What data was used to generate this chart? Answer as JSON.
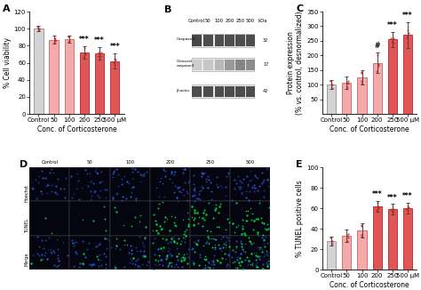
{
  "panel_A": {
    "label": "A",
    "categories": [
      "Control",
      "50",
      "100",
      "200",
      "250",
      "500 μM"
    ],
    "values": [
      100,
      87,
      88,
      72,
      71,
      62
    ],
    "errors": [
      3,
      5,
      4,
      7,
      7,
      9
    ],
    "ylabel": "% Cell viability",
    "xlabel": "Conc. of Corticosterone",
    "ylim": [
      0,
      120
    ],
    "yticks": [
      0,
      20,
      40,
      60,
      80,
      100,
      120
    ],
    "sig": [
      "",
      "",
      "",
      "***",
      "***",
      "***"
    ],
    "bar_colors": [
      "#d3d3d3",
      "#f2aaaa",
      "#f2aaaa",
      "#e05555",
      "#e05555",
      "#e05555"
    ],
    "edge_colors": [
      "#909090",
      "#d06060",
      "#d06060",
      "#bb2222",
      "#bb2222",
      "#bb2222"
    ]
  },
  "panel_C": {
    "label": "C",
    "categories": [
      "Control",
      "50",
      "100",
      "200",
      "250",
      "500 μM"
    ],
    "values": [
      100,
      107,
      125,
      175,
      255,
      270
    ],
    "errors": [
      15,
      20,
      25,
      35,
      25,
      45
    ],
    "ylabel": "Protein expression\n(% vs. control, desnormalized)",
    "xlabel": "Conc. of Corticosterone",
    "ylim": [
      0,
      350
    ],
    "yticks": [
      50,
      100,
      150,
      200,
      250,
      300,
      350
    ],
    "sig": [
      "",
      "",
      "",
      "#",
      "***",
      "***"
    ],
    "bar_colors": [
      "#d3d3d3",
      "#f2aaaa",
      "#f2aaaa",
      "#f2aaaa",
      "#e05555",
      "#e05555"
    ],
    "edge_colors": [
      "#909090",
      "#d06060",
      "#d06060",
      "#d06060",
      "#bb2222",
      "#bb2222"
    ]
  },
  "panel_E": {
    "label": "E",
    "categories": [
      "Control",
      "50",
      "100",
      "200",
      "250",
      "500 μM"
    ],
    "values": [
      28,
      33,
      38,
      62,
      59,
      60
    ],
    "errors": [
      4,
      6,
      7,
      5,
      5,
      5
    ],
    "ylabel": "% TUNEL positive cells",
    "xlabel": "Conc. of Corticosterone",
    "ylim": [
      0,
      100
    ],
    "yticks": [
      0,
      20,
      40,
      60,
      80,
      100
    ],
    "sig": [
      "",
      "",
      "",
      "***",
      "***",
      "***"
    ],
    "bar_colors": [
      "#d3d3d3",
      "#f2aaaa",
      "#f2aaaa",
      "#e05555",
      "#e05555",
      "#e05555"
    ],
    "edge_colors": [
      "#909090",
      "#d06060",
      "#d06060",
      "#bb2222",
      "#bb2222",
      "#bb2222"
    ]
  },
  "panel_B": {
    "label": "B",
    "header": [
      "Control",
      "50",
      "100",
      "200",
      "250",
      "500",
      "kDa"
    ],
    "row_labels": [
      "Caspase3",
      "Cleaved\ncaspase3",
      "β-actin"
    ],
    "kda_labels": [
      "32",
      "17",
      "42"
    ],
    "band_intensities": [
      [
        0.28,
        0.3,
        0.3,
        0.3,
        0.3,
        0.3
      ],
      [
        0.8,
        0.78,
        0.72,
        0.6,
        0.52,
        0.55
      ],
      [
        0.3,
        0.3,
        0.3,
        0.3,
        0.3,
        0.3
      ]
    ],
    "bg_color": "#f5f5f5"
  },
  "panel_D": {
    "label": "D",
    "col_labels": [
      "Control",
      "50",
      "100",
      "200",
      "250",
      "500"
    ],
    "row_labels": [
      "Hoechst",
      "TUNEL",
      "Merge"
    ],
    "hoechst_dot_counts": [
      12,
      15,
      18,
      22,
      25,
      28
    ],
    "tunel_dot_counts": [
      2,
      4,
      6,
      18,
      22,
      24
    ],
    "merge_blue_counts": [
      12,
      15,
      18,
      22,
      25,
      28
    ],
    "merge_green_counts": [
      2,
      4,
      6,
      18,
      22,
      24
    ]
  },
  "background_color": "#ffffff",
  "tick_fontsize": 5.0,
  "label_fontsize": 5.5,
  "sig_fontsize": 5.5,
  "panel_label_fontsize": 8
}
